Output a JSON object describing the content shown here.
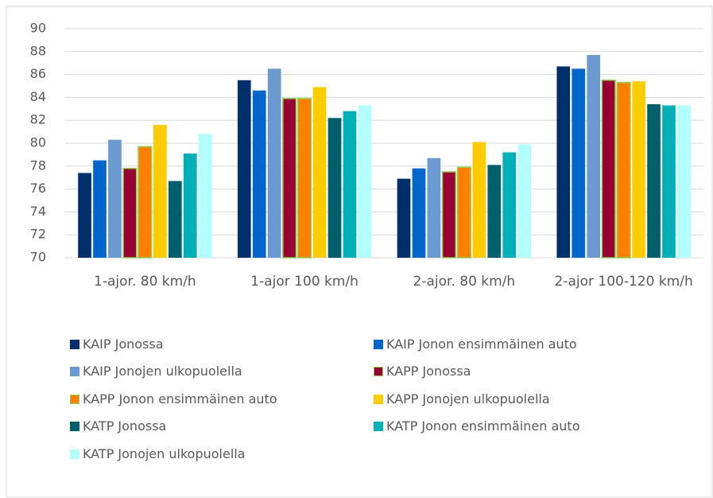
{
  "chart_data": {
    "type": "bar",
    "categories": [
      "1-ajor. 80 km/h",
      "1-ajor 100 km/h",
      "2-ajor. 80 km/h",
      "2-ajor 100-120 km/h"
    ],
    "series": [
      {
        "name": "KAIP Jonossa",
        "color": "#002f6c",
        "values": [
          77.4,
          85.5,
          76.9,
          86.7
        ]
      },
      {
        "name": "KAIP Jonon ensimmäinen auto",
        "color": "#0066cc",
        "values": [
          78.5,
          84.6,
          77.8,
          86.5
        ]
      },
      {
        "name": "KAIP Jonojen ulkopuolella",
        "color": "#6a9ad0",
        "values": [
          80.3,
          86.5,
          78.7,
          87.7
        ]
      },
      {
        "name": "KAPP Jonossa",
        "color": "#990033",
        "edgecolor": "#92d050",
        "values": [
          77.8,
          83.9,
          77.5,
          85.5
        ]
      },
      {
        "name": "KAPP Jonon ensimmäinen auto",
        "color": "#ff8000",
        "edgecolor": "#92d050",
        "values": [
          79.7,
          83.9,
          77.9,
          85.3
        ]
      },
      {
        "name": "KAPP Jonojen ulkopuolella",
        "color": "#ffcc00",
        "values": [
          81.6,
          84.9,
          80.1,
          85.4
        ]
      },
      {
        "name": "KATP Jonossa",
        "color": "#005f6b",
        "values": [
          76.7,
          82.2,
          78.1,
          83.4
        ]
      },
      {
        "name": "KATP Jonon ensimmäinen auto",
        "color": "#00b0b9",
        "values": [
          79.1,
          82.8,
          79.2,
          83.3
        ]
      },
      {
        "name": "KATP Jonojen ulkopuolella",
        "color": "#b3ffff",
        "values": [
          80.8,
          83.3,
          79.9,
          83.3
        ]
      }
    ],
    "ylim": [
      70,
      90
    ],
    "yticks": [
      70,
      72,
      74,
      76,
      78,
      80,
      82,
      84,
      86,
      88,
      90
    ],
    "grid": true,
    "legend": "bottom"
  }
}
